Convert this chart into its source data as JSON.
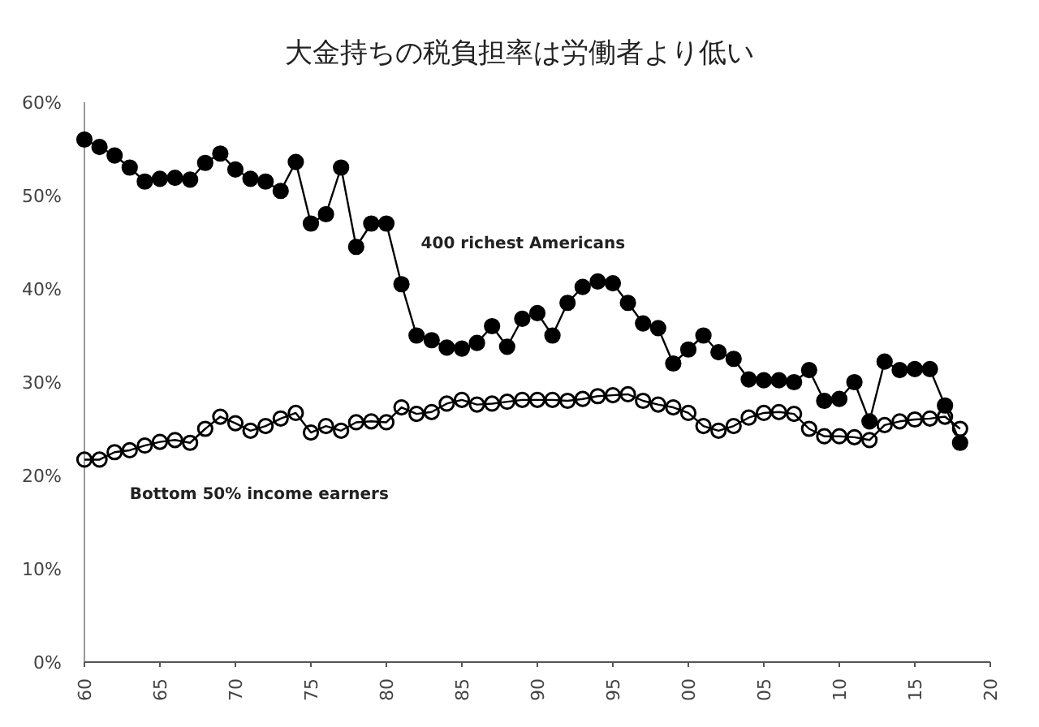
{
  "chart_data": {
    "type": "line",
    "title": "大金持ちの税負担率は労働者より低い",
    "x": [
      1960,
      1961,
      1962,
      1963,
      1964,
      1965,
      1966,
      1967,
      1968,
      1969,
      1970,
      1971,
      1972,
      1973,
      1974,
      1975,
      1976,
      1977,
      1978,
      1979,
      1980,
      1981,
      1982,
      1983,
      1984,
      1985,
      1986,
      1987,
      1988,
      1989,
      1990,
      1991,
      1992,
      1993,
      1994,
      1995,
      1996,
      1997,
      1998,
      1999,
      2000,
      2001,
      2002,
      2003,
      2004,
      2005,
      2006,
      2007,
      2008,
      2009,
      2010,
      2011,
      2012,
      2013,
      2014,
      2015,
      2016,
      2017,
      2018
    ],
    "series": [
      {
        "name": "400 richest Americans",
        "color": "#000000",
        "values": [
          56,
          55.2,
          54.3,
          53,
          51.5,
          51.8,
          51.9,
          51.7,
          53.5,
          54.5,
          52.8,
          51.8,
          51.5,
          50.5,
          53.6,
          47,
          48,
          53,
          44.5,
          47,
          47,
          40.5,
          35,
          34.5,
          33.7,
          33.6,
          34.2,
          36,
          33.8,
          36.8,
          37.4,
          35,
          38.5,
          40.2,
          40.8,
          40.6,
          38.5,
          36.3,
          35.8,
          32,
          33.5,
          35,
          33.2,
          32.5,
          30.3,
          30.2,
          30.2,
          30,
          31.3,
          28,
          28.2,
          30,
          25.8,
          32.2,
          31.3,
          31.4,
          31.4,
          27.5,
          23.5
        ]
      },
      {
        "name": "Bottom 50% income earners",
        "color": "#000000",
        "values": [
          21.7,
          21.7,
          22.5,
          22.7,
          23.2,
          23.6,
          23.8,
          23.5,
          25,
          26.3,
          25.6,
          24.8,
          25.3,
          26.1,
          26.7,
          24.6,
          25.3,
          24.8,
          25.7,
          25.8,
          25.7,
          27.3,
          26.6,
          26.8,
          27.7,
          28.1,
          27.6,
          27.7,
          27.9,
          28.1,
          28.1,
          28.1,
          28,
          28.2,
          28.5,
          28.6,
          28.7,
          28,
          27.6,
          27.3,
          26.7,
          25.3,
          24.8,
          25.3,
          26.2,
          26.7,
          26.8,
          26.6,
          25,
          24.2,
          24.2,
          24.1,
          23.8,
          25.4,
          25.8,
          26,
          26.1,
          26.3,
          25
        ]
      }
    ],
    "xlim": [
      1960,
      2020
    ],
    "xticks": [
      {
        "value": 1960,
        "label": "60"
      },
      {
        "value": 1965,
        "label": "65"
      },
      {
        "value": 1970,
        "label": "70"
      },
      {
        "value": 1975,
        "label": "75"
      },
      {
        "value": 1980,
        "label": "80"
      },
      {
        "value": 1985,
        "label": "85"
      },
      {
        "value": 1990,
        "label": "90"
      },
      {
        "value": 1995,
        "label": "95"
      },
      {
        "value": 2000,
        "label": "00"
      },
      {
        "value": 2005,
        "label": "05"
      },
      {
        "value": 2010,
        "label": "10"
      },
      {
        "value": 2015,
        "label": "15"
      },
      {
        "value": 2020,
        "label": "20"
      }
    ],
    "ylim": [
      0,
      60
    ],
    "yticks": [
      {
        "value": 0,
        "label": "0%"
      },
      {
        "value": 10,
        "label": "10%"
      },
      {
        "value": 20,
        "label": "20%"
      },
      {
        "value": 30,
        "label": "30%"
      },
      {
        "value": 40,
        "label": "40%"
      },
      {
        "value": 50,
        "label": "50%"
      },
      {
        "value": 60,
        "label": "60%"
      }
    ],
    "marker": "circle",
    "grid": false
  }
}
